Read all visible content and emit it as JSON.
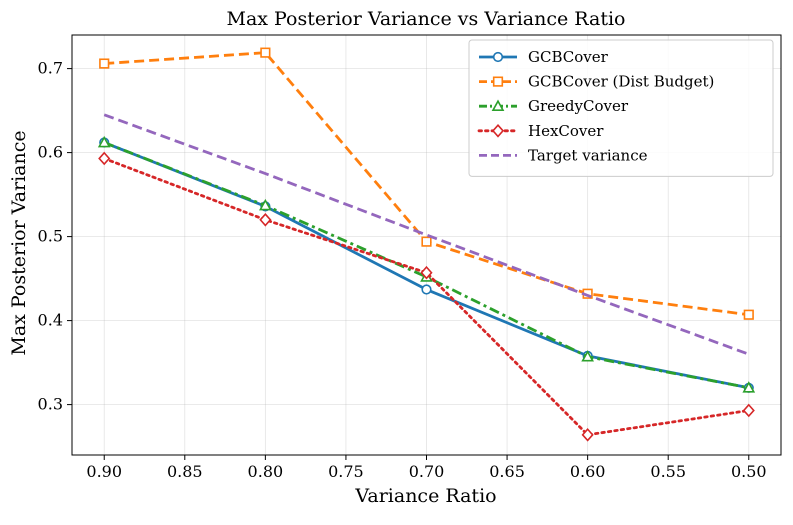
{
  "chart_data": {
    "type": "line",
    "title": "Max Posterior Variance vs Variance Ratio",
    "xlabel": "Variance Ratio",
    "ylabel": "Max Posterior Variance",
    "xlim": [
      0.92,
      0.48
    ],
    "ylim": [
      0.24,
      0.74
    ],
    "x_inverted": true,
    "grid": true,
    "legend_position": "top-right",
    "x_ticks": [
      0.9,
      0.85,
      0.8,
      0.75,
      0.7,
      0.65,
      0.6,
      0.55,
      0.5
    ],
    "x_tick_labels": [
      "0.90",
      "0.85",
      "0.80",
      "0.75",
      "0.70",
      "0.65",
      "0.60",
      "0.55",
      "0.50"
    ],
    "y_ticks": [
      0.3,
      0.4,
      0.5,
      0.6,
      0.7
    ],
    "y_tick_labels": [
      "0.3",
      "0.4",
      "0.5",
      "0.6",
      "0.7"
    ],
    "x": [
      0.9,
      0.8,
      0.7,
      0.6,
      0.5
    ],
    "series": [
      {
        "name": "GCBCover",
        "values": [
          0.612,
          0.536,
          0.437,
          0.358,
          0.32
        ],
        "color": "#1f77b4",
        "dash": "solid",
        "marker": "circle"
      },
      {
        "name": "GCBCover (Dist Budget)",
        "values": [
          0.706,
          0.719,
          0.494,
          0.432,
          0.407
        ],
        "color": "#ff7f0e",
        "dash": "dashed",
        "marker": "square"
      },
      {
        "name": "GreedyCover",
        "values": [
          0.612,
          0.537,
          0.452,
          0.357,
          0.32
        ],
        "color": "#2ca02c",
        "dash": "dashdot",
        "marker": "triangle"
      },
      {
        "name": "HexCover",
        "values": [
          0.593,
          0.52,
          0.457,
          0.264,
          0.293
        ],
        "color": "#d62728",
        "dash": "dotted",
        "marker": "diamond"
      },
      {
        "name": "Target variance",
        "values": [
          0.645,
          0.575,
          0.502,
          0.43,
          0.36
        ],
        "color": "#9467bd",
        "dash": "dashed",
        "marker": "none"
      }
    ]
  }
}
